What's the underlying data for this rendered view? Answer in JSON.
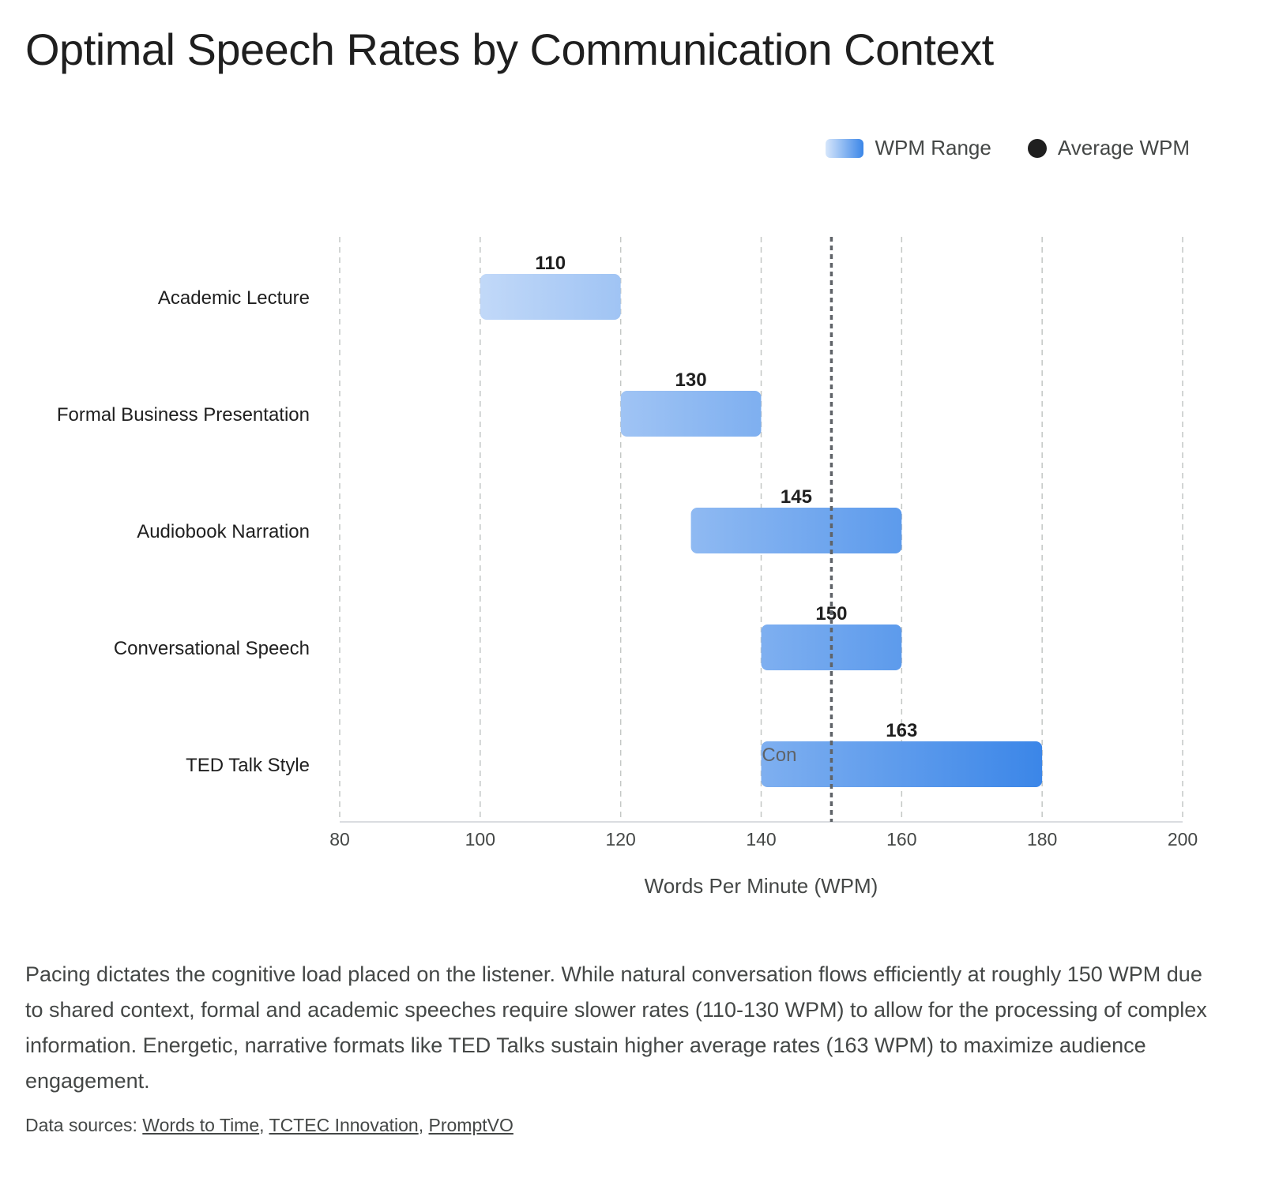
{
  "title": "Optimal Speech Rates by Communication Context",
  "legend": {
    "range_label": "WPM Range",
    "average_label": "Average WPM"
  },
  "chart_data": {
    "type": "bar",
    "orientation": "horizontal",
    "subtype": "floating-range",
    "xlabel": "Words Per Minute (WPM)",
    "xlim": [
      80,
      200
    ],
    "xticks": [
      80,
      100,
      120,
      140,
      160,
      180,
      200
    ],
    "grid": true,
    "legend_position": "top-right",
    "categories": [
      "Academic Lecture",
      "Formal Business Presentation",
      "Audiobook Narration",
      "Conversational Speech",
      "TED Talk Style"
    ],
    "series": [
      {
        "name": "WPM Range",
        "ranges": [
          [
            100,
            120
          ],
          [
            120,
            140
          ],
          [
            130,
            160
          ],
          [
            140,
            160
          ],
          [
            140,
            180
          ]
        ]
      },
      {
        "name": "Average WPM",
        "values": [
          110,
          130,
          145,
          150,
          163
        ]
      }
    ],
    "reference_line": {
      "x": 150,
      "label": "Con"
    },
    "colors": {
      "bar_start": "#d0e2fa",
      "bar_end": "#3b86e8",
      "grid": "#c4c7c5",
      "reference_line": "#5f6368",
      "axis": "#dadce0"
    }
  },
  "description": "Pacing dictates the cognitive load placed on the listener. While natural conversation flows efficiently at roughly 150 WPM due to shared context, formal and academic speeches require slower rates (110-130 WPM) to allow for the processing of complex information. Energetic, narrative formats like TED Talks sustain higher average rates (163 WPM) to maximize audience engagement.",
  "sources": {
    "prefix": "Data sources: ",
    "links": [
      "Words to Time",
      "TCTEC Innovation",
      "PromptVO"
    ],
    "separator": ", "
  }
}
